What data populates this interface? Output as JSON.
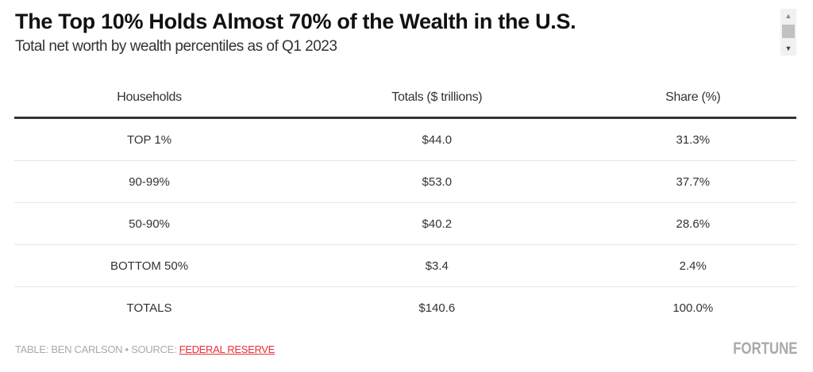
{
  "title": "The Top 10% Holds Almost 70% of the Wealth in the U.S.",
  "subtitle": "Total net worth by wealth percentiles as of Q1 2023",
  "table": {
    "headers": [
      "Households",
      "Totals ($ trillions)",
      "Share (%)"
    ],
    "rows": [
      [
        "TOP 1%",
        "$44.0",
        "31.3%"
      ],
      [
        "90-99%",
        "$53.0",
        "37.7%"
      ],
      [
        "50-90%",
        "$40.2",
        "28.6%"
      ],
      [
        "BOTTOM 50%",
        "$3.4",
        "2.4%"
      ],
      [
        "TOTALS",
        "$140.6",
        "100.0%"
      ]
    ]
  },
  "footer": {
    "credit": "TABLE: BEN CARLSON • SOURCE: ",
    "source_link": "FEDERAL RESERVE",
    "link_color": "#e8303a"
  },
  "logo": "FORTUNE",
  "scrollbar": {
    "up_icon": "▲",
    "down_icon": "▼"
  }
}
